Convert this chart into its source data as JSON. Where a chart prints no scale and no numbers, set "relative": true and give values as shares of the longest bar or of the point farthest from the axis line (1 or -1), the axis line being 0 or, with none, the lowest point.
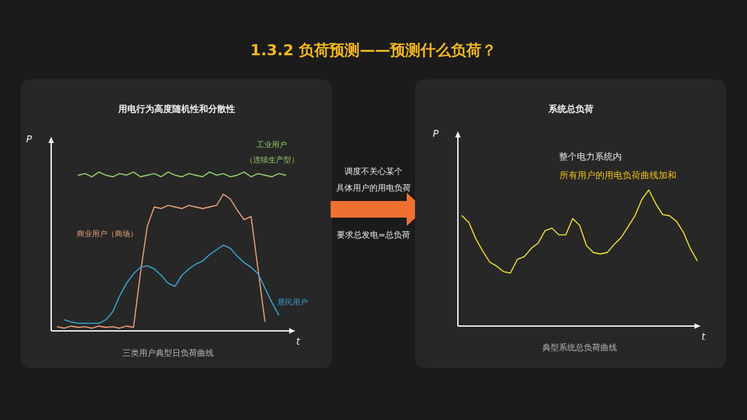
{
  "chart_data": [
    {
      "type": "line",
      "title": "用电行为高度随机性和分散性",
      "xlabel": "t",
      "ylabel": "P",
      "relative": true,
      "categories": [
        null,
        null,
        null,
        null,
        null,
        null,
        null,
        null,
        null,
        null,
        null,
        null,
        null,
        null,
        null,
        null,
        null,
        null,
        null,
        null,
        null,
        null,
        null,
        null,
        null,
        null,
        null,
        null,
        null,
        null,
        null,
        null,
        null,
        null
      ],
      "series": [
        {
          "name": "工业用户",
          "color": "#8fd26a",
          "values": [
            null,
            null,
            null,
            0.98,
            0.99,
            0.97,
            1.0,
            0.98,
            0.97,
            0.99,
            0.98,
            1.0,
            0.97,
            0.98,
            0.99,
            0.97,
            1.0,
            0.98,
            0.97,
            0.99,
            0.98,
            0.97,
            1.0,
            0.98,
            0.99,
            0.97,
            0.98,
            1.0,
            0.97,
            0.99,
            0.98,
            0.97,
            0.99,
            0.98
          ]
        },
        {
          "name": "商业用户（商场）",
          "color": "#f0a07a",
          "values": [
            0.026,
            0.017,
            0.03,
            0.022,
            0.026,
            0.017,
            0.03,
            0.022,
            0.026,
            0.017,
            0.03,
            0.022,
            0.36,
            0.66,
            0.78,
            0.77,
            0.79,
            0.78,
            0.77,
            0.79,
            0.78,
            0.77,
            0.78,
            0.79,
            0.86,
            0.83,
            0.76,
            0.7,
            0.72,
            0.39,
            0.06,
            null,
            null,
            null
          ]
        },
        {
          "name": "居民用户",
          "color": "#3aa8d8",
          "values": [
            null,
            0.07,
            0.056,
            0.048,
            0.048,
            0.048,
            0.048,
            0.07,
            0.12,
            0.22,
            0.3,
            0.36,
            0.4,
            0.41,
            0.39,
            0.35,
            0.3,
            0.28,
            0.35,
            0.39,
            0.42,
            0.44,
            0.48,
            0.51,
            0.54,
            0.52,
            0.47,
            0.43,
            0.4,
            0.36,
            0.27,
            0.18,
            0.1,
            null
          ]
        }
      ],
      "annotations": [
        "（连续生产型）",
        "三类用户典型日负荷曲线"
      ]
    },
    {
      "type": "other",
      "title": "1.3.2 负荷预测——预测什么负荷？",
      "annotations": [
        "调度不关心某个",
        "具体用户的用电负荷",
        "要求总发电=总负荷"
      ]
    },
    {
      "type": "line",
      "title": "系统总负荷",
      "xlabel": "t",
      "ylabel": "P",
      "relative": true,
      "categories": [
        null,
        null,
        null,
        null,
        null,
        null,
        null,
        null,
        null,
        null,
        null,
        null,
        null,
        null,
        null,
        null,
        null,
        null,
        null,
        null,
        null,
        null,
        null,
        null,
        null,
        null,
        null,
        null,
        null,
        null,
        null,
        null,
        null,
        null,
        null
      ],
      "series": [
        {
          "color": "#f0e030",
          "values": [
            0.81,
            0.76,
            0.64,
            0.55,
            0.47,
            0.44,
            0.4,
            0.39,
            0.49,
            0.51,
            0.57,
            0.61,
            0.7,
            0.72,
            0.67,
            0.67,
            0.79,
            0.74,
            0.59,
            0.54,
            0.53,
            0.54,
            0.6,
            0.65,
            0.73,
            0.81,
            0.93,
            1.0,
            0.9,
            0.82,
            0.81,
            0.77,
            0.69,
            0.57,
            0.48
          ]
        }
      ],
      "annotations": [
        "整个电力系统内",
        "所有用户的用电负荷曲线加和",
        "典型系统总负荷曲线"
      ]
    }
  ]
}
